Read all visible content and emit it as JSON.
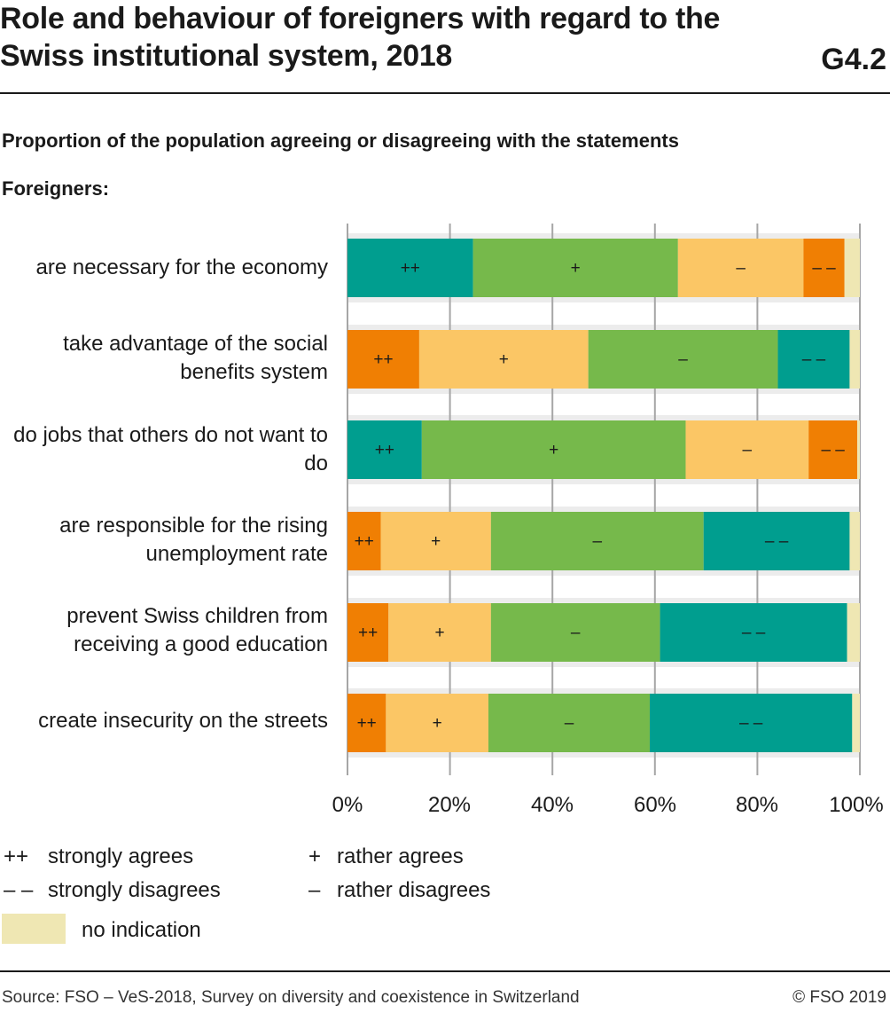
{
  "header": {
    "title": "Role and behaviour of foreigners with regard to the Swiss institutional system, 2018",
    "code": "G4.2",
    "subtitle": "Proportion of the population agreeing or disagreeing with the statements",
    "group_label": "Foreigners:"
  },
  "chart_data": {
    "type": "bar",
    "orientation": "horizontal",
    "stacked": true,
    "xlim": [
      0,
      100
    ],
    "x_ticks": [
      "0%",
      "20%",
      "40%",
      "60%",
      "80%",
      "100%"
    ],
    "grid": true,
    "rows": [
      {
        "category": "are necessary for the economy",
        "segments": [
          {
            "label": "++",
            "value": 24.5,
            "color": "#009e8f"
          },
          {
            "label": "+",
            "value": 40,
            "color": "#76b94b"
          },
          {
            "label": "–",
            "value": 24.5,
            "color": "#fbc665"
          },
          {
            "label": "– –",
            "value": 8,
            "color": "#f07f03"
          },
          {
            "label": "",
            "value": 3,
            "color": "#efe7b3"
          }
        ]
      },
      {
        "category": "take advantage of the social benefits system",
        "segments": [
          {
            "label": "++",
            "value": 14,
            "color": "#f07f03"
          },
          {
            "label": "+",
            "value": 33,
            "color": "#fbc665"
          },
          {
            "label": "–",
            "value": 37,
            "color": "#76b94b"
          },
          {
            "label": "– –",
            "value": 14,
            "color": "#009e8f"
          },
          {
            "label": "",
            "value": 2,
            "color": "#efe7b3"
          }
        ]
      },
      {
        "category": "do jobs that others do not want to do",
        "segments": [
          {
            "label": "++",
            "value": 14.5,
            "color": "#009e8f"
          },
          {
            "label": "+",
            "value": 51.5,
            "color": "#76b94b"
          },
          {
            "label": "–",
            "value": 24,
            "color": "#fbc665"
          },
          {
            "label": "– –",
            "value": 9.5,
            "color": "#f07f03"
          },
          {
            "label": "",
            "value": 0.5,
            "color": "#efe7b3"
          }
        ]
      },
      {
        "category": "are responsible for the rising unemployment rate",
        "segments": [
          {
            "label": "++",
            "value": 6.5,
            "color": "#f07f03"
          },
          {
            "label": "+",
            "value": 21.5,
            "color": "#fbc665"
          },
          {
            "label": "–",
            "value": 41.5,
            "color": "#76b94b"
          },
          {
            "label": "– –",
            "value": 28.5,
            "color": "#009e8f"
          },
          {
            "label": "",
            "value": 2,
            "color": "#efe7b3"
          }
        ]
      },
      {
        "category": "prevent Swiss children from receiving a good education",
        "segments": [
          {
            "label": "++",
            "value": 8,
            "color": "#f07f03"
          },
          {
            "label": "+",
            "value": 20,
            "color": "#fbc665"
          },
          {
            "label": "–",
            "value": 33,
            "color": "#76b94b"
          },
          {
            "label": "– –",
            "value": 36.5,
            "color": "#009e8f"
          },
          {
            "label": "",
            "value": 2.5,
            "color": "#efe7b3"
          }
        ]
      },
      {
        "category": "create insecurity on the streets",
        "segments": [
          {
            "label": "++",
            "value": 7.5,
            "color": "#f07f03"
          },
          {
            "label": "+",
            "value": 20,
            "color": "#fbc665"
          },
          {
            "label": "–",
            "value": 31.5,
            "color": "#76b94b"
          },
          {
            "label": "– –",
            "value": 39.5,
            "color": "#009e8f"
          },
          {
            "label": "",
            "value": 1.5,
            "color": "#efe7b3"
          }
        ]
      }
    ]
  },
  "legend": {
    "strongly_agrees_sym": "++",
    "strongly_agrees": "strongly agrees",
    "rather_agrees_sym": "+",
    "rather_agrees": "rather agrees",
    "strongly_disagrees_sym": "– –",
    "strongly_disagrees": "strongly disagrees",
    "rather_disagrees_sym": "–",
    "rather_disagrees": "rather disagrees",
    "no_indication": "no indication",
    "no_indication_color": "#efe7b3"
  },
  "footer": {
    "source": "Source: FSO – VeS-2018, Survey on diversity and coexistence in Switzerland",
    "copyright": "© FSO 2019"
  }
}
